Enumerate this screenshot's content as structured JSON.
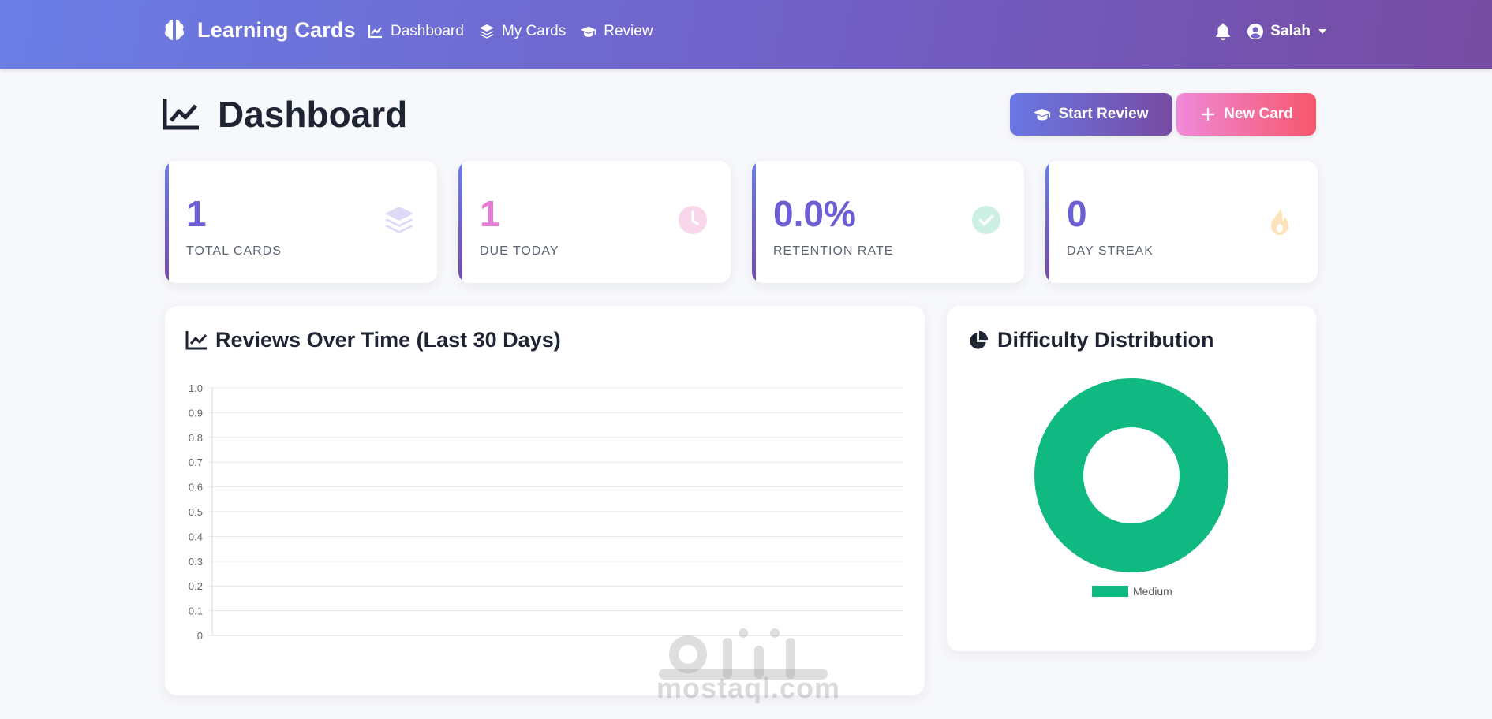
{
  "brand": {
    "title": "Learning Cards"
  },
  "nav": {
    "items": [
      {
        "label": "Dashboard",
        "icon": "chart-line-icon"
      },
      {
        "label": "My Cards",
        "icon": "layers-icon"
      },
      {
        "label": "Review",
        "icon": "graduation-cap-icon"
      }
    ]
  },
  "user": {
    "name": "Salah"
  },
  "page": {
    "title": "Dashboard"
  },
  "actions": {
    "start_review": "Start Review",
    "new_card": "New Card"
  },
  "stats": [
    {
      "value": "1",
      "label": "TOTAL CARDS",
      "color": "#6b5fd3",
      "icon": "layers-icon"
    },
    {
      "value": "1",
      "label": "DUE TODAY",
      "color": "#e77cd6",
      "icon": "clock-icon"
    },
    {
      "value": "0.0%",
      "label": "RETENTION RATE",
      "color": "#6b5fd3",
      "icon": "check-circle-icon"
    },
    {
      "value": "0",
      "label": "DAY STREAK",
      "color": "#6b5fd3",
      "icon": "fire-icon"
    }
  ],
  "reviews_card": {
    "title": "Reviews Over Time (Last 30 Days)"
  },
  "difficulty_card": {
    "title": "Difficulty Distribution"
  },
  "chart_data": [
    {
      "type": "line",
      "title": "Reviews Over Time (Last 30 Days)",
      "x": [],
      "series": [],
      "ylim": [
        0,
        1.0
      ],
      "yticks": [
        "1.0",
        "0.9",
        "0.8",
        "0.7",
        "0.6",
        "0.5",
        "0.4",
        "0.3",
        "0.2",
        "0.1",
        "0"
      ],
      "grid": true
    },
    {
      "type": "pie",
      "title": "Difficulty Distribution",
      "categories": [
        "Medium"
      ],
      "values": [
        1
      ],
      "colors": [
        "#10b981"
      ],
      "legend": "bottom"
    }
  ],
  "watermark": {
    "text": "mostaql.com"
  }
}
